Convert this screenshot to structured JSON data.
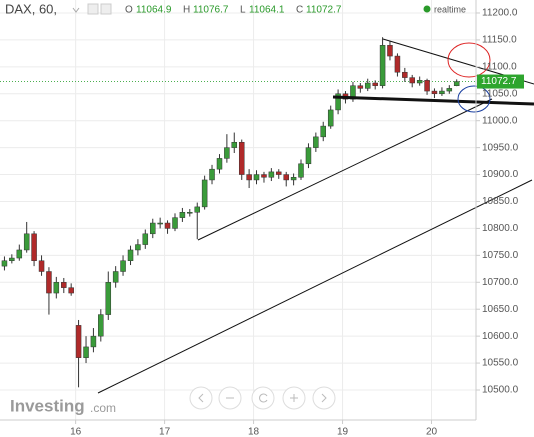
{
  "chart_data": {
    "type": "candlestick",
    "title": "DAX, 60,",
    "ohlc_labels": [
      "O",
      "H",
      "L",
      "C"
    ],
    "status": "realtime",
    "brand": [
      "Investing",
      ".com"
    ],
    "up_color": "#3a9b3a",
    "down_color": "#b02a2a",
    "grid": true,
    "xlim": [
      15.15,
      20.5
    ],
    "xticks": [
      16,
      17,
      18,
      19,
      20
    ],
    "ylim": [
      10444.3,
      11224.1
    ],
    "yticks": [
      {
        "value": 10500,
        "label": "10500.0"
      },
      {
        "value": 10550,
        "label": "10550.0"
      },
      {
        "value": 10600,
        "label": "10600.0"
      },
      {
        "value": 10650,
        "label": "10650.0"
      },
      {
        "value": 10700,
        "label": "10700.0"
      },
      {
        "value": 10750,
        "label": "10750.0"
      },
      {
        "value": 10800,
        "label": "10800.0"
      },
      {
        "value": 10850,
        "label": "10850.0"
      },
      {
        "value": 10900,
        "label": "10900.0"
      },
      {
        "value": 10950,
        "label": "10950.0"
      },
      {
        "value": 11000,
        "label": "11000.0"
      },
      {
        "value": 11050,
        "label": "11050.0"
      },
      {
        "value": 11100,
        "label": "11100.0"
      },
      {
        "value": 11150,
        "label": "11150.0"
      },
      {
        "value": 11200,
        "label": "11200.0"
      }
    ],
    "x": [
      15.2,
      15.283,
      15.367,
      15.45,
      15.533,
      15.617,
      15.7,
      15.783,
      15.867,
      15.95,
      16.033,
      16.117,
      16.2,
      16.283,
      16.367,
      16.45,
      16.533,
      16.617,
      16.7,
      16.783,
      16.867,
      16.95,
      17.033,
      17.117,
      17.2,
      17.283,
      17.367,
      17.45,
      17.533,
      17.617,
      17.7,
      17.783,
      17.867,
      17.95,
      18.033,
      18.117,
      18.2,
      18.283,
      18.367,
      18.45,
      18.533,
      18.617,
      18.7,
      18.783,
      18.867,
      18.95,
      19.033,
      19.117,
      19.2,
      19.283,
      19.367,
      19.45,
      19.533,
      19.617,
      19.7,
      19.783,
      19.867,
      19.95,
      20.033,
      20.117,
      20.2,
      20.283
    ],
    "candles": [
      [
        10730,
        10748,
        10722,
        10740
      ],
      [
        10740,
        10752,
        10735,
        10745
      ],
      [
        10745,
        10770,
        10740,
        10760
      ],
      [
        10760,
        10812,
        10755,
        10790
      ],
      [
        10790,
        10795,
        10730,
        10740
      ],
      [
        10740,
        10750,
        10712,
        10720
      ],
      [
        10720,
        10728,
        10640,
        10680
      ],
      [
        10680,
        10710,
        10670,
        10700
      ],
      [
        10700,
        10708,
        10680,
        10690
      ],
      [
        10690,
        10698,
        10675,
        10680
      ],
      [
        10620,
        10630,
        10505,
        10560
      ],
      [
        10560,
        10600,
        10550,
        10580
      ],
      [
        10580,
        10615,
        10570,
        10600
      ],
      [
        10600,
        10650,
        10590,
        10640
      ],
      [
        10640,
        10720,
        10630,
        10700
      ],
      [
        10700,
        10730,
        10690,
        10720
      ],
      [
        10720,
        10750,
        10712,
        10740
      ],
      [
        10740,
        10768,
        10732,
        10760
      ],
      [
        10760,
        10780,
        10750,
        10770
      ],
      [
        10770,
        10798,
        10762,
        10790
      ],
      [
        10790,
        10818,
        10782,
        10810
      ],
      [
        10810,
        10820,
        10800,
        10810
      ],
      [
        10810,
        10815,
        10790,
        10800
      ],
      [
        10800,
        10828,
        10795,
        10820
      ],
      [
        10820,
        10838,
        10812,
        10830
      ],
      [
        10830,
        10836,
        10822,
        10830
      ],
      [
        10830,
        10848,
        10780,
        10840
      ],
      [
        10840,
        10898,
        10835,
        10890
      ],
      [
        10890,
        10918,
        10882,
        10910
      ],
      [
        10910,
        10938,
        10902,
        10930
      ],
      [
        10930,
        10975,
        10922,
        10950
      ],
      [
        10950,
        10978,
        10940,
        10960
      ],
      [
        10960,
        10965,
        10890,
        10900
      ],
      [
        10900,
        10910,
        10875,
        10890
      ],
      [
        10890,
        10908,
        10882,
        10900
      ],
      [
        10900,
        10905,
        10885,
        10895
      ],
      [
        10895,
        10912,
        10888,
        10905
      ],
      [
        10905,
        10910,
        10892,
        10900
      ],
      [
        10900,
        10905,
        10878,
        10890
      ],
      [
        10890,
        10902,
        10880,
        10895
      ],
      [
        10895,
        10928,
        10890,
        10920
      ],
      [
        10920,
        10958,
        10912,
        10950
      ],
      [
        10950,
        10978,
        10942,
        10970
      ],
      [
        10970,
        10998,
        10962,
        10990
      ],
      [
        10990,
        11028,
        10985,
        11020
      ],
      [
        11020,
        11058,
        11012,
        11050
      ],
      [
        11050,
        11055,
        11032,
        11040
      ],
      [
        11040,
        11072,
        11035,
        11065
      ],
      [
        11065,
        11070,
        11052,
        11060
      ],
      [
        11060,
        11078,
        11055,
        11070
      ],
      [
        11070,
        11075,
        11058,
        11065
      ],
      [
        11065,
        11155,
        11060,
        11140
      ],
      [
        11140,
        11148,
        11112,
        11120
      ],
      [
        11120,
        11125,
        11082,
        11090
      ],
      [
        11090,
        11098,
        11072,
        11080
      ],
      [
        11080,
        11085,
        11062,
        11070
      ],
      [
        11070,
        11082,
        11065,
        11075
      ],
      [
        11075,
        11078,
        11048,
        11055
      ],
      [
        11055,
        11060,
        11042,
        11050
      ],
      [
        11050,
        11062,
        11046,
        11055
      ],
      [
        11055,
        11066,
        11050,
        11060
      ],
      [
        11064.9,
        11076.7,
        11064.1,
        11072.7
      ]
    ]
  }
}
